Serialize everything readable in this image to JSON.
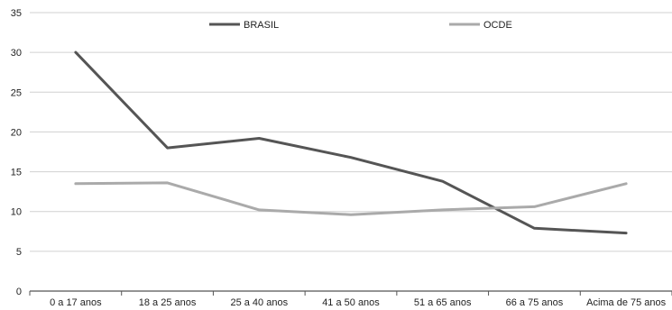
{
  "chart_data": {
    "type": "line",
    "title": "",
    "xlabel": "",
    "ylabel": "",
    "categories": [
      "0 a 17 anos",
      "18 a 25 anos",
      "25 a 40 anos",
      "41 a 50 anos",
      "51 a 65 anos",
      "66 a 75 anos",
      "Acima de 75 anos"
    ],
    "series": [
      {
        "name": "BRASIL",
        "color": "#555555",
        "values": [
          30,
          18,
          19.2,
          16.8,
          13.8,
          7.9,
          7.3
        ]
      },
      {
        "name": "OCDE",
        "color": "#aaaaaa",
        "values": [
          13.5,
          13.6,
          10.2,
          9.6,
          10.2,
          10.6,
          13.5
        ]
      }
    ],
    "ylim": [
      0,
      35
    ],
    "yticks": [
      0,
      5,
      10,
      15,
      20,
      25,
      30,
      35
    ],
    "grid": true,
    "legend_position": "top-center"
  }
}
